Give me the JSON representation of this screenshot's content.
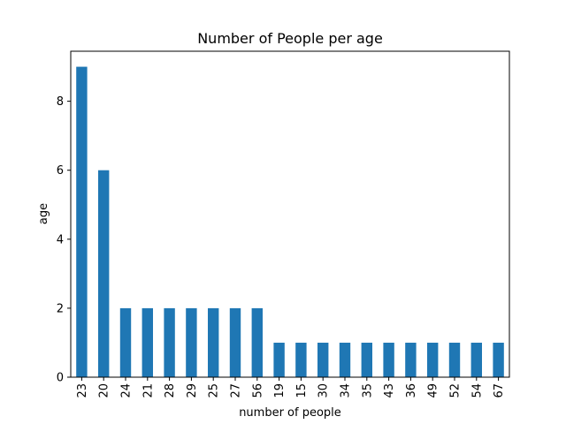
{
  "chart_data": {
    "type": "bar",
    "title": "Number of People per age",
    "xlabel": "number of people",
    "ylabel": "age",
    "categories": [
      "23",
      "20",
      "24",
      "21",
      "28",
      "29",
      "25",
      "27",
      "56",
      "19",
      "15",
      "30",
      "34",
      "35",
      "43",
      "36",
      "49",
      "52",
      "54",
      "67"
    ],
    "values": [
      9,
      6,
      2,
      2,
      2,
      2,
      2,
      2,
      2,
      1,
      1,
      1,
      1,
      1,
      1,
      1,
      1,
      1,
      1,
      1
    ],
    "ylim": [
      0,
      9.45
    ],
    "yticks": [
      0,
      2,
      4,
      6,
      8
    ],
    "grid": false,
    "legend": "none",
    "bar_color": "#1f77b4",
    "tick_label_rotation": "vertical"
  }
}
